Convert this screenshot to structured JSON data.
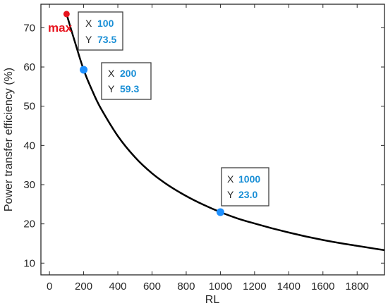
{
  "chart_data": {
    "type": "line",
    "xlabel": "RL",
    "ylabel": "Power transfer efficiency (%)",
    "xlim": [
      -50,
      1960
    ],
    "ylim": [
      7,
      76
    ],
    "x_ticks": [
      0,
      200,
      400,
      600,
      800,
      1000,
      1200,
      1400,
      1600,
      1800
    ],
    "y_ticks": [
      10,
      20,
      30,
      40,
      50,
      60,
      70
    ],
    "grid": false,
    "series": [
      {
        "x": [
          100,
          150,
          200,
          250,
          300,
          400,
          500,
          600,
          700,
          800,
          900,
          1000,
          1100,
          1200,
          1300,
          1400,
          1500,
          1600,
          1700,
          1800,
          1900,
          1960
        ],
        "y": [
          73.5,
          66.2,
          59.3,
          54.0,
          49.5,
          42.4,
          37.0,
          32.9,
          29.7,
          27.1,
          24.9,
          23.0,
          21.4,
          20.1,
          18.9,
          17.8,
          16.8,
          15.9,
          15.1,
          14.4,
          13.7,
          13.3
        ],
        "color": "#000000"
      }
    ],
    "markers": [
      {
        "x": 100,
        "y": 73.5,
        "color": "#e8141e",
        "label": "max"
      },
      {
        "x": 200,
        "y": 59.3,
        "color": "#1e90ff"
      },
      {
        "x": 1000,
        "y": 23.0,
        "color": "#1e90ff"
      }
    ],
    "datatips": [
      {
        "x_key": "X",
        "y_key": "Y",
        "x_value": "100",
        "y_value": "73.5"
      },
      {
        "x_key": "X",
        "y_key": "Y",
        "x_value": "200",
        "y_value": "59.3"
      },
      {
        "x_key": "X",
        "y_key": "Y",
        "x_value": "1000",
        "y_value": "23.0"
      }
    ],
    "datatip_value_color": "#1a8fd6"
  }
}
